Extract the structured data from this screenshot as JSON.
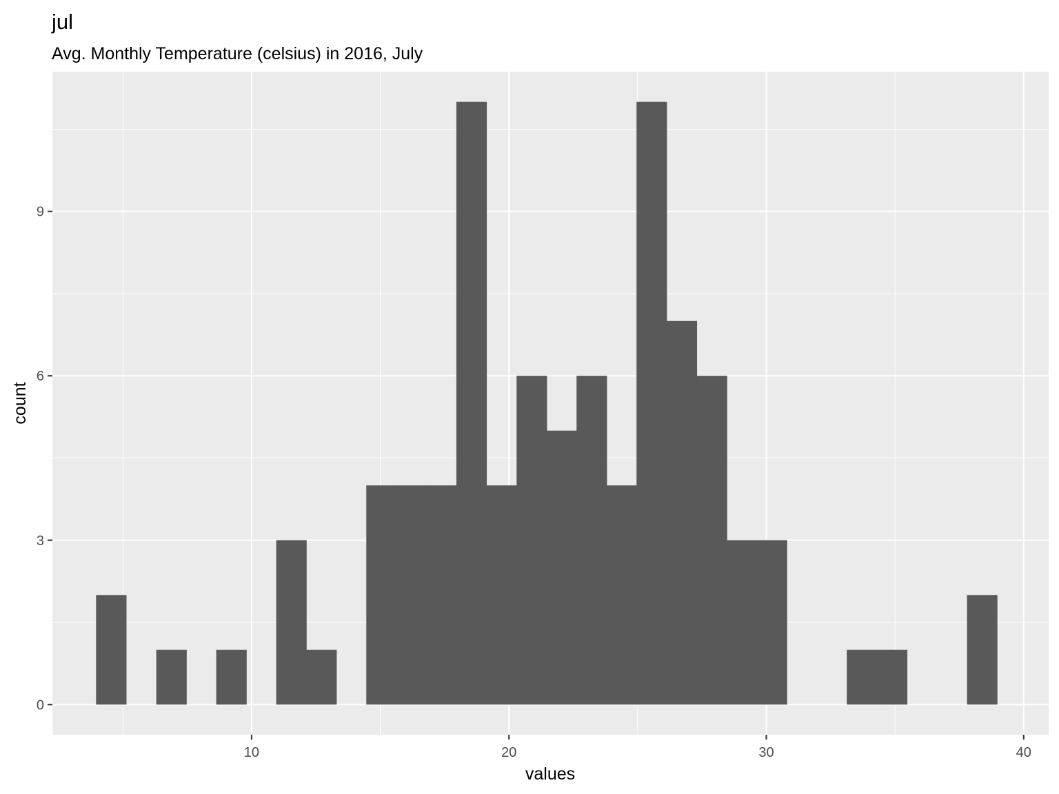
{
  "chart_data": {
    "type": "bar",
    "histogram": true,
    "title": "jul",
    "subtitle": "Avg. Monthly Temperature (celsius) in 2016, July",
    "xlabel": "values",
    "ylabel": "count",
    "bin_width": 1.1667,
    "bins": [
      {
        "x": 4.54,
        "count": 2
      },
      {
        "x": 5.71,
        "count": 0
      },
      {
        "x": 6.88,
        "count": 1
      },
      {
        "x": 8.04,
        "count": 0
      },
      {
        "x": 9.21,
        "count": 1
      },
      {
        "x": 10.38,
        "count": 0
      },
      {
        "x": 11.54,
        "count": 3
      },
      {
        "x": 12.71,
        "count": 1
      },
      {
        "x": 13.88,
        "count": 0
      },
      {
        "x": 15.04,
        "count": 4
      },
      {
        "x": 16.21,
        "count": 4
      },
      {
        "x": 17.38,
        "count": 4
      },
      {
        "x": 18.54,
        "count": 11
      },
      {
        "x": 19.71,
        "count": 4
      },
      {
        "x": 20.88,
        "count": 6
      },
      {
        "x": 22.04,
        "count": 5
      },
      {
        "x": 23.21,
        "count": 6
      },
      {
        "x": 24.38,
        "count": 4
      },
      {
        "x": 25.54,
        "count": 11
      },
      {
        "x": 26.71,
        "count": 7
      },
      {
        "x": 27.88,
        "count": 6
      },
      {
        "x": 29.04,
        "count": 3
      },
      {
        "x": 30.21,
        "count": 3
      },
      {
        "x": 31.38,
        "count": 0
      },
      {
        "x": 32.54,
        "count": 0
      },
      {
        "x": 33.71,
        "count": 1
      },
      {
        "x": 34.88,
        "count": 1
      },
      {
        "x": 36.04,
        "count": 0
      },
      {
        "x": 37.21,
        "count": 0
      },
      {
        "x": 38.38,
        "count": 2
      }
    ],
    "xlim": [
      2.26,
      40.97
    ],
    "ylim": [
      -0.55,
      11.55
    ],
    "x_ticks": [
      10,
      20,
      30,
      40
    ],
    "x_tick_labels": [
      "10",
      "20",
      "30",
      "40"
    ],
    "y_ticks": [
      0,
      3,
      6,
      9
    ],
    "y_tick_labels": [
      "0",
      "3",
      "6",
      "9"
    ],
    "grid": true,
    "bar_color": "#595959",
    "panel_color": "#ebebeb",
    "grid_color": "#ffffff"
  }
}
